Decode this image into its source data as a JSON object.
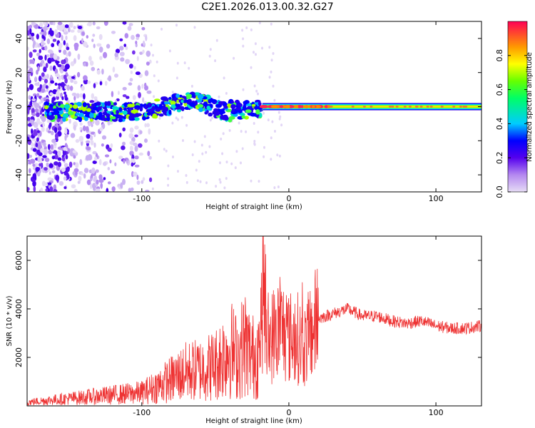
{
  "title": "C2E1.2026.013.00.32.G27",
  "chart_data": [
    {
      "type": "heatmap",
      "name": "spectrogram",
      "xlabel": "Height of straight line (km)",
      "ylabel": "Frequency (Hz)",
      "xlim": [
        -178,
        131
      ],
      "ylim": [
        -50,
        50
      ],
      "xticks": [
        -100,
        0,
        100
      ],
      "yticks": [
        -40,
        -20,
        0,
        20,
        40
      ],
      "grid": false,
      "colorbar": {
        "label": "Normalized spectral amplitude",
        "range": [
          0,
          1
        ],
        "ticks": [
          0.0,
          0.2,
          0.4,
          0.6,
          0.8
        ]
      }
    },
    {
      "type": "line",
      "name": "snr",
      "xlabel": "Height of straight line (km)",
      "ylabel": "SNR (10 * v/v)",
      "xlim": [
        -178,
        131
      ],
      "ylim": [
        0,
        7000
      ],
      "xticks": [
        -100,
        0,
        100
      ],
      "yticks": [
        2000,
        4000,
        6000
      ],
      "grid": false,
      "color": "#ee3333",
      "series": [
        {
          "name": "SNR",
          "x": [
            -178,
            -160,
            -150,
            -140,
            -130,
            -120,
            -110,
            -100,
            -90,
            -80,
            -70,
            -60,
            -50,
            -40,
            -35,
            -30,
            -25,
            -20,
            -17,
            -15,
            -12,
            -10,
            -5,
            0,
            5,
            10,
            15,
            20,
            30,
            40,
            50,
            60,
            70,
            80,
            90,
            100,
            110,
            120,
            131
          ],
          "values": [
            150,
            250,
            300,
            350,
            400,
            450,
            500,
            550,
            800,
            1100,
            1400,
            1500,
            1700,
            2400,
            2000,
            2600,
            2000,
            2300,
            5200,
            2300,
            2800,
            3000,
            3200,
            2800,
            2900,
            2400,
            3000,
            3600,
            3800,
            4000,
            3700,
            3700,
            3500,
            3400,
            3500,
            3300,
            3200,
            3200,
            3300
          ]
        }
      ]
    }
  ]
}
